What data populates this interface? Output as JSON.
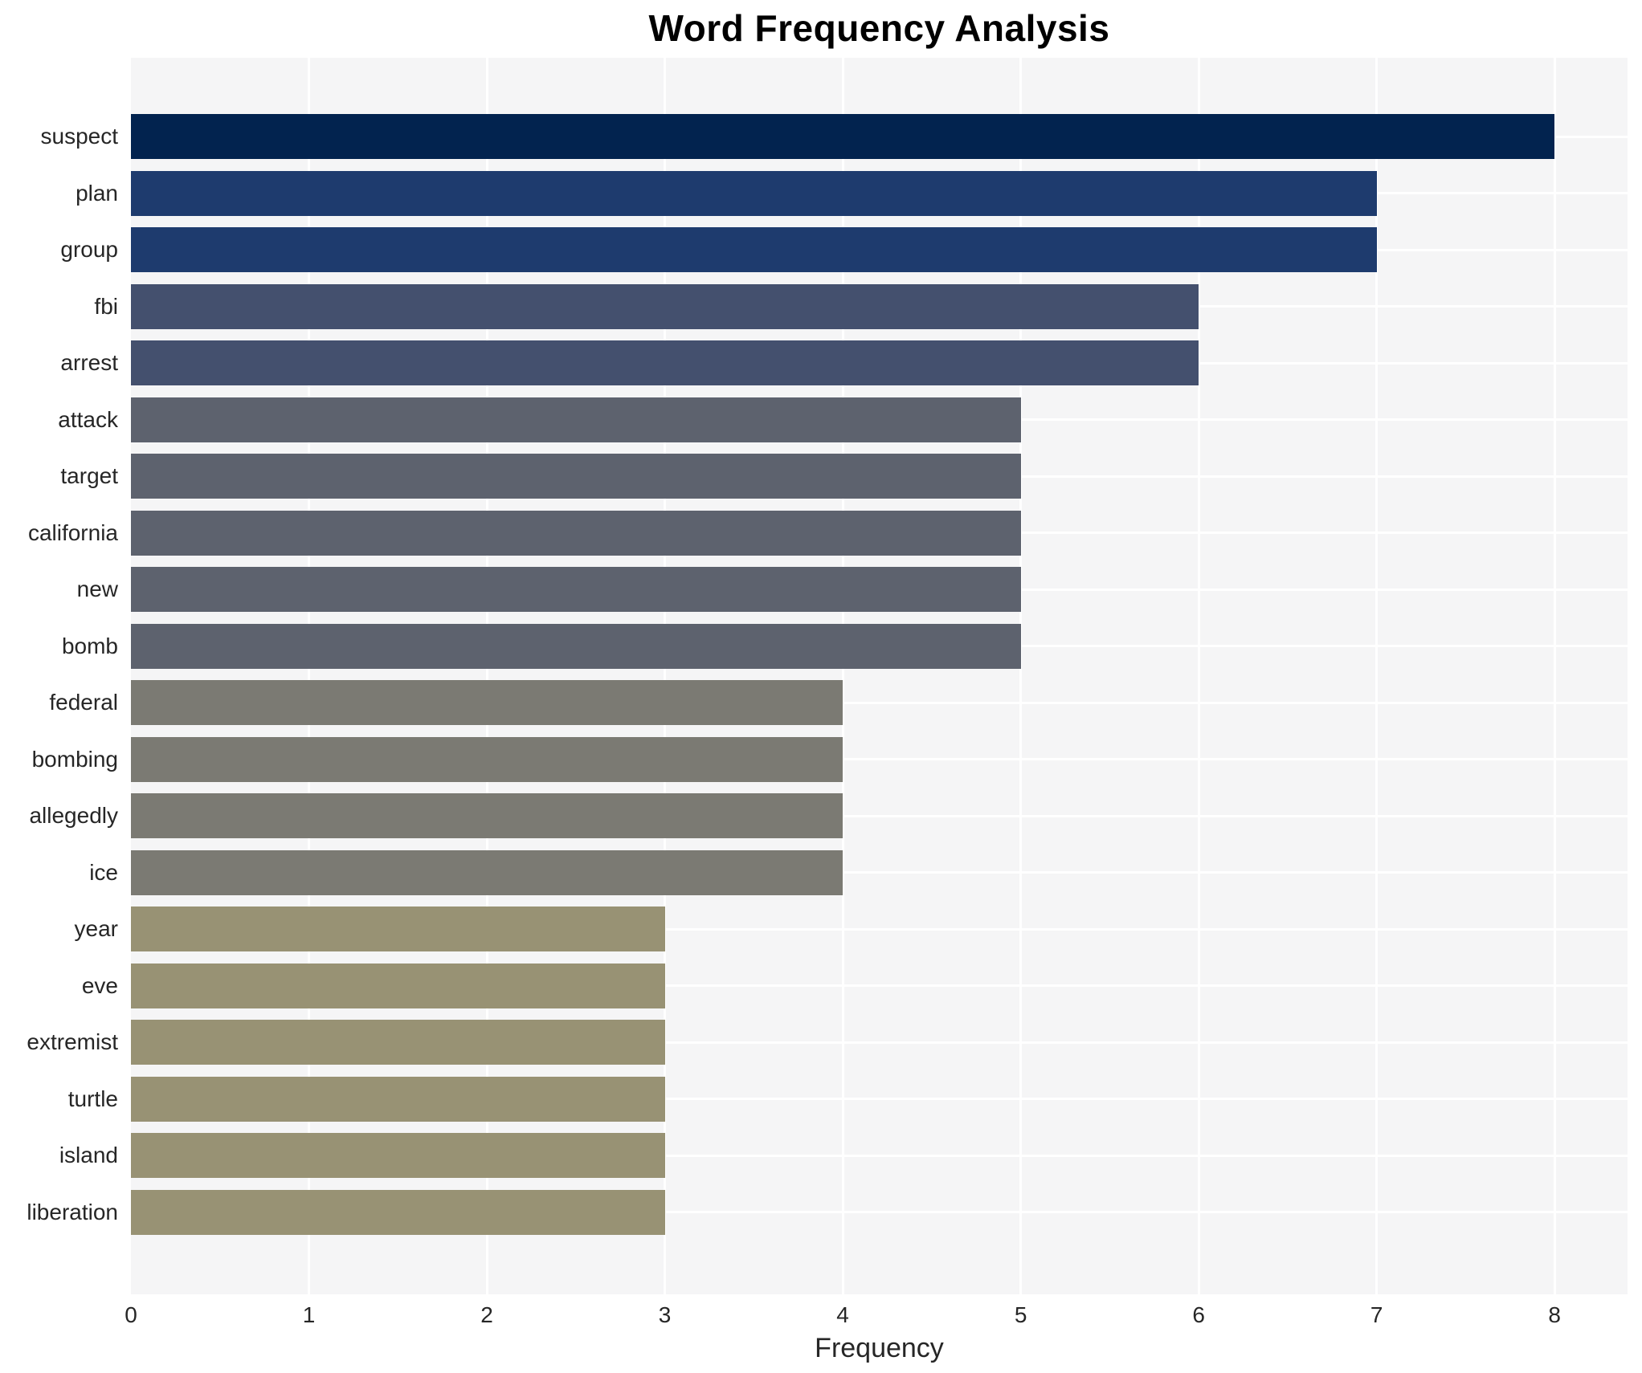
{
  "chart_data": {
    "type": "bar",
    "orientation": "horizontal",
    "title": "Word Frequency Analysis",
    "xlabel": "Frequency",
    "ylabel": "",
    "categories": [
      "suspect",
      "plan",
      "group",
      "fbi",
      "arrest",
      "attack",
      "target",
      "california",
      "new",
      "bomb",
      "federal",
      "bombing",
      "allegedly",
      "ice",
      "year",
      "eve",
      "extremist",
      "turtle",
      "island",
      "liberation"
    ],
    "values": [
      8,
      7,
      7,
      6,
      6,
      5,
      5,
      5,
      5,
      5,
      4,
      4,
      4,
      4,
      3,
      3,
      3,
      3,
      3,
      3
    ],
    "bar_colors": [
      "#02234f",
      "#1e3b6e",
      "#1e3b6e",
      "#44506e",
      "#44506e",
      "#5d626e",
      "#5d626e",
      "#5d626e",
      "#5d626e",
      "#5d626e",
      "#7b7a73",
      "#7b7a73",
      "#7b7a73",
      "#7b7a73",
      "#989274",
      "#989274",
      "#989274",
      "#989274",
      "#989274",
      "#989274"
    ],
    "xticks": [
      0,
      1,
      2,
      3,
      4,
      5,
      6,
      7,
      8
    ],
    "xlim": [
      0,
      8.41
    ],
    "grid": true,
    "legend_position": "none",
    "plot_background": "#f5f5f6",
    "grid_color": "#ffffff",
    "tick_text_color": "#262626",
    "title_color": "#000000"
  }
}
